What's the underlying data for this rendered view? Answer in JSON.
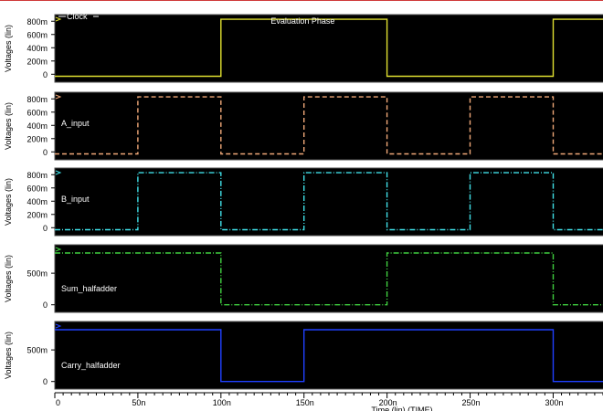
{
  "chart_data": {
    "type": "line",
    "x_unit": "s",
    "xlim": [
      0,
      330
    ],
    "xlabel": "Time (lin) (TIME)",
    "x_ticks": [
      {
        "value": 0,
        "label": "0"
      },
      {
        "value": 50,
        "label": "50n"
      },
      {
        "value": 100,
        "label": "100n"
      },
      {
        "value": 150,
        "label": "150n"
      },
      {
        "value": 200,
        "label": "200n"
      },
      {
        "value": 250,
        "label": "250n"
      },
      {
        "value": 300,
        "label": "300n"
      }
    ],
    "background": "#000000",
    "grid": false,
    "panels": [
      {
        "ylabel": "Voltages (lin)",
        "ylim": [
          -0.12,
          0.9
        ],
        "y_ticks": [
          {
            "value": 0,
            "label": "0"
          },
          {
            "value": 0.2,
            "label": "200m"
          },
          {
            "value": 0.4,
            "label": "400m"
          },
          {
            "value": 0.6,
            "label": "600m"
          },
          {
            "value": 0.8,
            "label": "800m"
          }
        ],
        "series": [
          {
            "name": "Clock",
            "color": "#e0e030",
            "style": "solid",
            "x": [
              0,
              100,
              100,
              200,
              200,
              300,
              300,
              330
            ],
            "y": [
              -0.03,
              -0.03,
              0.83,
              0.83,
              -0.03,
              -0.03,
              0.83,
              0.83
            ]
          }
        ],
        "annotations": [
          {
            "text": "Evaluation Phase",
            "x": 130
          }
        ]
      },
      {
        "ylabel": "Voltages (lin)",
        "ylim": [
          -0.12,
          0.9
        ],
        "y_ticks": [
          {
            "value": 0,
            "label": "0"
          },
          {
            "value": 0.2,
            "label": "200m"
          },
          {
            "value": 0.4,
            "label": "400m"
          },
          {
            "value": 0.6,
            "label": "600m"
          },
          {
            "value": 0.8,
            "label": "800m"
          }
        ],
        "series": [
          {
            "name": "A_input",
            "color": "#f0a878",
            "style": "dash",
            "x": [
              0,
              50,
              50,
              100,
              100,
              150,
              150,
              200,
              200,
              250,
              250,
              300,
              300,
              330
            ],
            "y": [
              -0.03,
              -0.03,
              0.83,
              0.83,
              -0.03,
              -0.03,
              0.83,
              0.83,
              -0.03,
              -0.03,
              0.83,
              0.83,
              -0.03,
              -0.03
            ]
          }
        ]
      },
      {
        "ylabel": "Voltages (lin)",
        "ylim": [
          -0.12,
          0.9
        ],
        "y_ticks": [
          {
            "value": 0,
            "label": "0"
          },
          {
            "value": 0.2,
            "label": "200m"
          },
          {
            "value": 0.4,
            "label": "400m"
          },
          {
            "value": 0.6,
            "label": "600m"
          },
          {
            "value": 0.8,
            "label": "800m"
          }
        ],
        "series": [
          {
            "name": "B_input",
            "color": "#40e0e8",
            "style": "dashdot",
            "x": [
              0,
              50,
              50,
              100,
              100,
              150,
              150,
              200,
              200,
              250,
              250,
              300,
              300,
              330
            ],
            "y": [
              -0.03,
              -0.03,
              0.83,
              0.83,
              -0.03,
              -0.03,
              0.83,
              0.83,
              -0.03,
              -0.03,
              0.83,
              0.83,
              -0.03,
              -0.03
            ]
          }
        ]
      },
      {
        "ylabel": "Voltages (lin)",
        "ylim": [
          -0.12,
          0.95
        ],
        "y_ticks": [
          {
            "value": 0,
            "label": "0"
          },
          {
            "value": 0.5,
            "label": "500m"
          }
        ],
        "series": [
          {
            "name": "Sum_halfadder",
            "color": "#40d040",
            "style": "dashdot",
            "x": [
              0,
              100,
              100,
              200,
              200,
              300,
              300,
              330
            ],
            "y": [
              0.82,
              0.82,
              0.0,
              0.0,
              0.82,
              0.82,
              0.0,
              0.0
            ]
          }
        ]
      },
      {
        "ylabel": "Voltages (lin)",
        "ylim": [
          -0.12,
          0.95
        ],
        "y_ticks": [
          {
            "value": 0,
            "label": "0"
          },
          {
            "value": 0.5,
            "label": "500m"
          }
        ],
        "series": [
          {
            "name": "Carry_halfadder",
            "color": "#2040ff",
            "style": "solid",
            "x": [
              0,
              100,
              100,
              150,
              150,
              300,
              300,
              330
            ],
            "y": [
              0.82,
              0.82,
              0.0,
              0.0,
              0.82,
              0.82,
              0.0,
              0.0
            ]
          }
        ]
      }
    ]
  }
}
